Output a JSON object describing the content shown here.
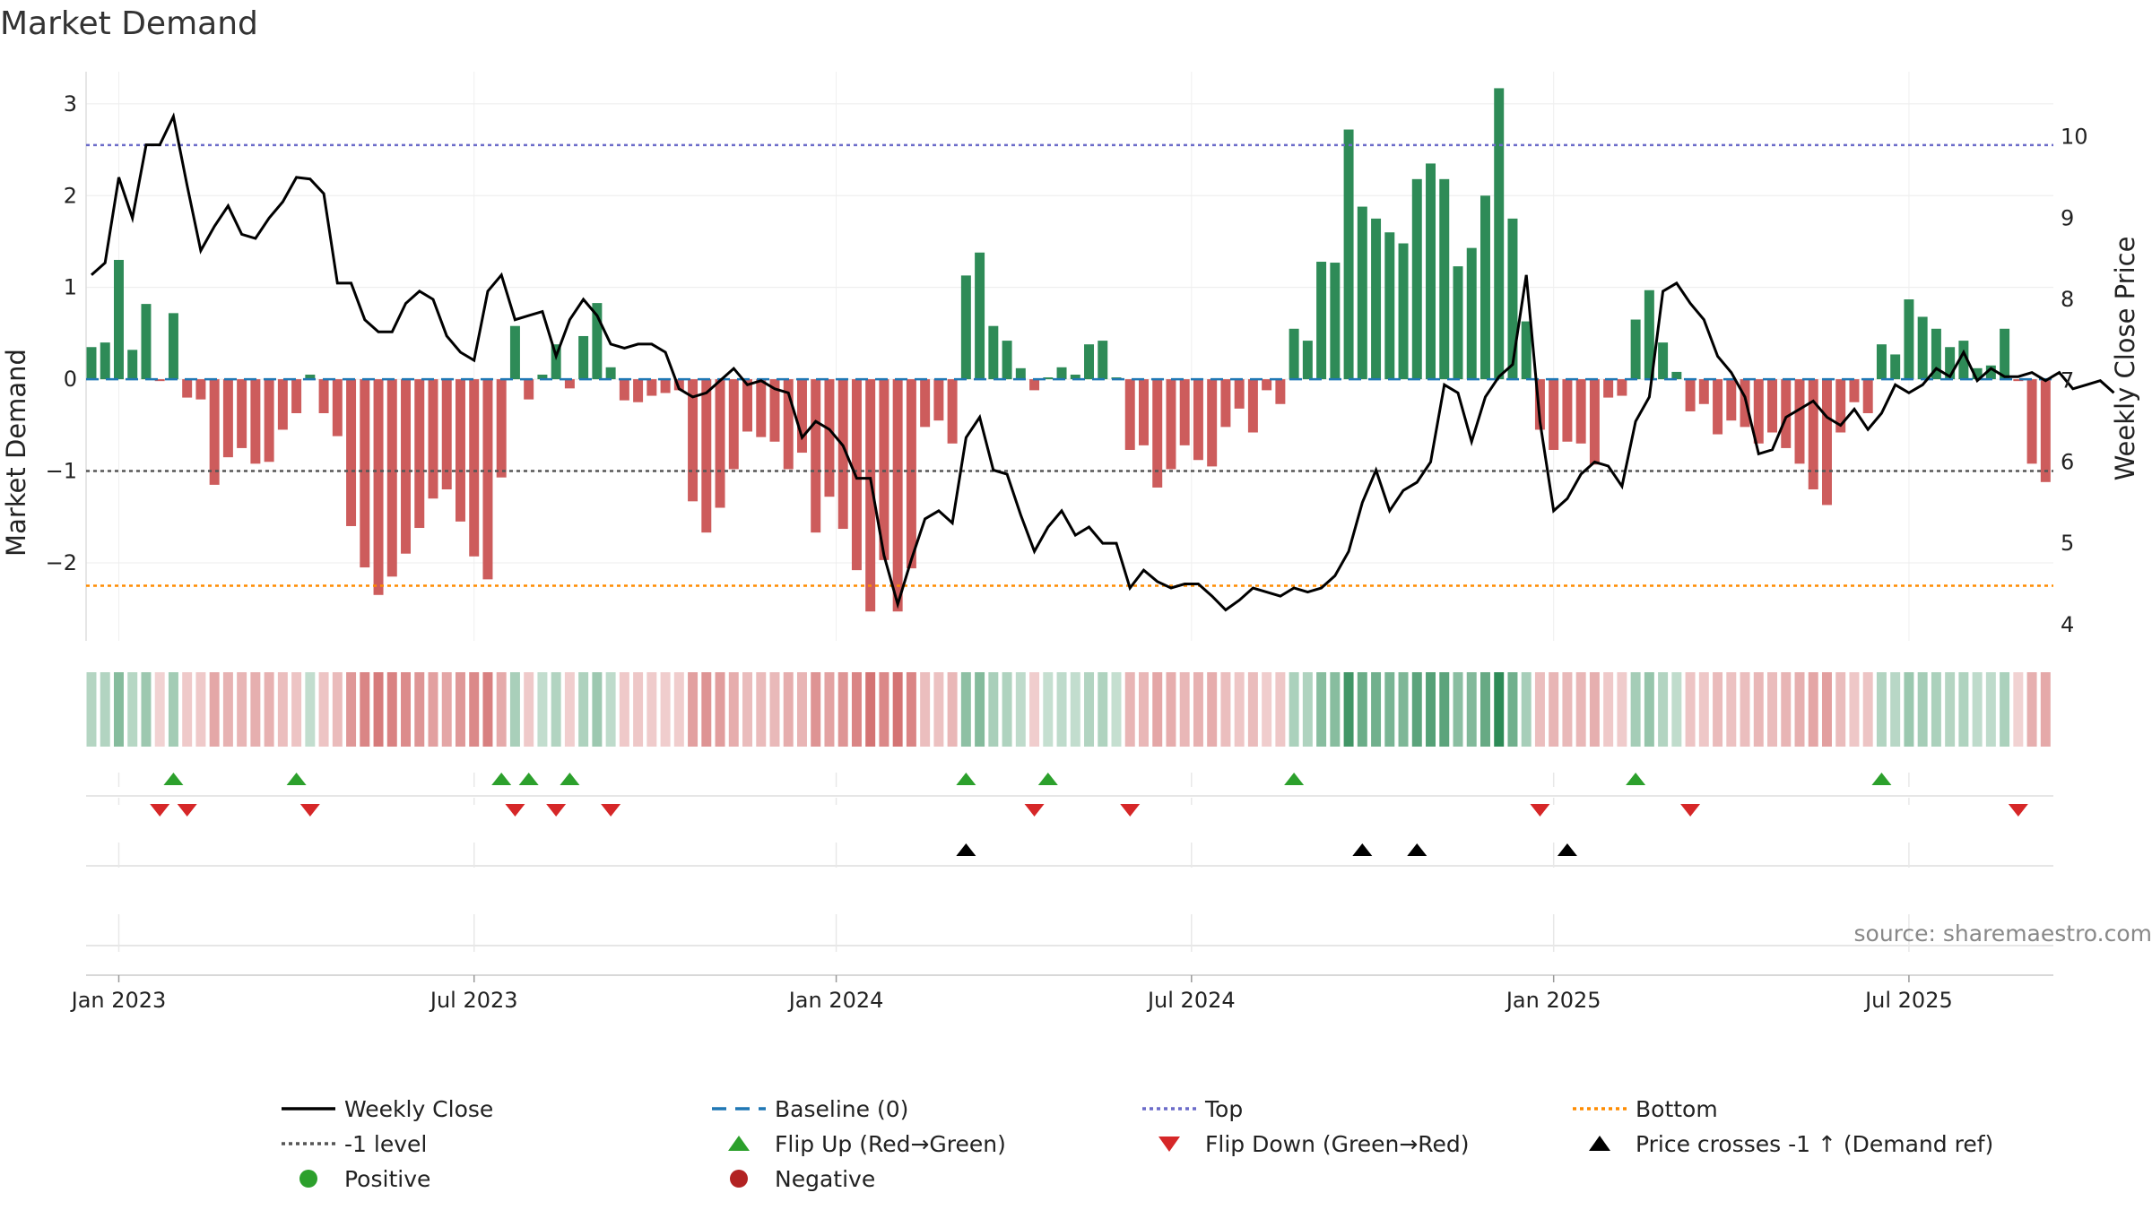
{
  "chart_data": {
    "type": "bar",
    "title": "Market Demand",
    "ylabel": "Market Demand",
    "y2label": "Weekly Close Price",
    "ylim": [
      -2.85,
      3.35
    ],
    "y2lim": [
      3.8,
      10.8
    ],
    "yticks": [
      3,
      2,
      1,
      0,
      -1,
      -2
    ],
    "ytick_labels": [
      "3",
      "2",
      "1",
      "0",
      "−1",
      "−2"
    ],
    "y2ticks": [
      10,
      9,
      8,
      7,
      6,
      5,
      4
    ],
    "y2tick_labels": [
      "10",
      "9",
      "8",
      "7",
      "6",
      "5",
      "4"
    ],
    "xticks": [
      {
        "label": "Jan 2023",
        "week": 2
      },
      {
        "label": "Jul 2023",
        "week": 28
      },
      {
        "label": "Jan 2024",
        "week": 54.5
      },
      {
        "label": "Jul 2024",
        "week": 80.5
      },
      {
        "label": "Jan 2025",
        "week": 107
      },
      {
        "label": "Jul 2025",
        "week": 133
      }
    ],
    "reference_lines": {
      "top": 2.55,
      "bottom": -2.25,
      "minus_one": -1,
      "baseline": 0
    },
    "demand": [
      0.35,
      0.4,
      1.3,
      0.32,
      0.82,
      -0.02,
      0.72,
      -0.2,
      -0.22,
      -1.15,
      -0.85,
      -0.75,
      -0.92,
      -0.9,
      -0.55,
      -0.37,
      0.05,
      -0.37,
      -0.62,
      -1.6,
      -2.05,
      -2.35,
      -2.15,
      -1.9,
      -1.62,
      -1.3,
      -1.2,
      -1.55,
      -1.93,
      -2.18,
      -1.07,
      0.58,
      -0.22,
      0.05,
      0.38,
      -0.1,
      0.47,
      0.83,
      0.13,
      -0.23,
      -0.25,
      -0.18,
      -0.15,
      -0.12,
      -1.33,
      -1.67,
      -1.4,
      -0.98,
      -0.57,
      -0.63,
      -0.68,
      -0.98,
      -0.8,
      -1.67,
      -1.28,
      -1.63,
      -2.08,
      -2.53,
      -1.97,
      -2.53,
      -2.06,
      -0.52,
      -0.45,
      -0.7,
      1.13,
      1.38,
      0.58,
      0.42,
      0.12,
      -0.12,
      0.02,
      0.13,
      0.05,
      0.38,
      0.42,
      0.02,
      -0.77,
      -0.72,
      -1.18,
      -0.98,
      -0.72,
      -0.88,
      -0.95,
      -0.52,
      -0.32,
      -0.58,
      -0.12,
      -0.27,
      0.55,
      0.42,
      1.28,
      1.27,
      2.72,
      1.88,
      1.75,
      1.6,
      1.48,
      2.18,
      2.35,
      2.18,
      1.23,
      1.43,
      2.0,
      3.17,
      1.75,
      0.63,
      -0.55,
      -0.77,
      -0.68,
      -0.7,
      -0.93,
      -0.2,
      -0.18,
      0.65,
      0.97,
      0.4,
      0.08,
      -0.35,
      -0.27,
      -0.6,
      -0.45,
      -0.52,
      -0.7,
      -0.58,
      -0.75,
      -0.92,
      -1.2,
      -1.37,
      -0.58,
      -0.25,
      -0.37,
      0.38,
      0.27,
      0.87,
      0.68,
      0.55,
      0.35,
      0.42,
      0.12,
      0.15,
      0.55,
      -0.02,
      -0.92,
      -1.12
    ],
    "weekly_close": [
      8.3,
      8.45,
      9.5,
      9.0,
      9.9,
      9.9,
      10.25,
      9.4,
      8.6,
      8.9,
      9.15,
      8.8,
      8.75,
      9.0,
      9.2,
      9.5,
      9.48,
      9.3,
      8.2,
      8.2,
      7.75,
      7.6,
      7.6,
      7.95,
      8.1,
      8.0,
      7.55,
      7.35,
      7.25,
      8.1,
      8.3,
      7.75,
      7.8,
      7.85,
      7.3,
      7.75,
      8.0,
      7.8,
      7.45,
      7.4,
      7.45,
      7.45,
      7.35,
      6.9,
      6.8,
      6.85,
      7.0,
      7.15,
      6.95,
      7.0,
      6.9,
      6.85,
      6.3,
      6.5,
      6.4,
      6.2,
      5.8,
      5.8,
      4.85,
      4.25,
      4.8,
      5.3,
      5.4,
      5.25,
      6.3,
      6.55,
      5.9,
      5.85,
      5.35,
      4.9,
      5.2,
      5.4,
      5.1,
      5.2,
      5.0,
      5.0,
      4.45,
      4.67,
      4.53,
      4.45,
      4.5,
      4.5,
      4.35,
      4.18,
      4.3,
      4.45,
      4.4,
      4.35,
      4.45,
      4.4,
      4.45,
      4.6,
      4.9,
      5.5,
      5.9,
      5.4,
      5.65,
      5.75,
      6.0,
      6.95,
      6.85,
      6.25,
      6.8,
      7.05,
      7.2,
      8.3,
      6.5,
      5.4,
      5.55,
      5.85,
      6.0,
      5.95,
      5.7,
      6.5,
      6.8,
      8.1,
      8.2,
      7.95,
      7.75,
      7.3,
      7.1,
      6.8,
      6.1,
      6.15,
      6.55,
      6.65,
      6.75,
      6.55,
      6.45,
      6.65,
      6.4,
      6.6,
      6.95,
      6.85,
      6.95,
      7.15,
      7.05,
      7.35,
      7.0,
      7.15,
      7.05,
      7.05,
      7.1,
      7.0,
      7.1,
      6.9,
      6.95,
      7.0,
      6.85
    ],
    "flip_up_weeks": [
      6,
      15,
      30,
      32,
      35,
      64,
      70,
      88,
      113,
      131
    ],
    "flip_down_weeks": [
      5,
      7,
      16,
      31,
      34,
      38,
      69,
      76,
      106,
      117,
      141
    ],
    "price_cross_weeks": [
      64,
      93,
      97,
      108
    ],
    "source": "source: sharemaestro.com",
    "legend": [
      {
        "label": "Weekly Close",
        "kind": "line",
        "color": "#000000"
      },
      {
        "label": "Baseline (0)",
        "kind": "dash",
        "color": "#1f77b4"
      },
      {
        "label": "Top",
        "kind": "dot",
        "color": "#6b6bc9"
      },
      {
        "label": "Bottom",
        "kind": "dot",
        "color": "#ff8c00"
      },
      {
        "label": "-1 level",
        "kind": "dot",
        "color": "#555555"
      },
      {
        "label": "Flip Up (Red→Green)",
        "kind": "tri-up",
        "color": "#2ca02c"
      },
      {
        "label": "Flip Down (Green→Red)",
        "kind": "tri-down",
        "color": "#d62728"
      },
      {
        "label": "Price crosses -1 ↑ (Demand ref)",
        "kind": "tri-up",
        "color": "#000000"
      },
      {
        "label": "Positive",
        "kind": "circle",
        "color": "#2ca02c"
      },
      {
        "label": "Negative",
        "kind": "circle",
        "color": "#b22222"
      }
    ],
    "colors": {
      "positive": "#2e8b57",
      "negative": "#cd5c5c",
      "close": "#000000"
    }
  }
}
